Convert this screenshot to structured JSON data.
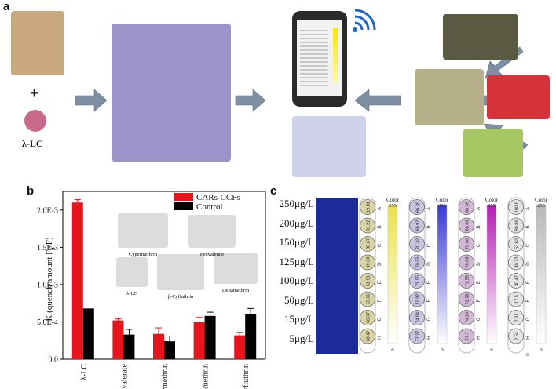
{
  "panels": {
    "a": "a",
    "b": "b",
    "c": "c"
  },
  "panel_a": {
    "plus": "+",
    "lc_label": "λ-LC"
  },
  "panel_b": {
    "ylabel_main": "K (quench amount F",
    "ylabel_sub": "0",
    "ylabel_end": "/F)",
    "legend_colors": {
      "CARs-CCFs": "#e8141c",
      "Control": "#000000"
    },
    "structure_labels": [
      "Cypermethrin",
      "Fenvalerate",
      "λ-LC",
      "β-Cyfluthrin",
      "Deltamethrin"
    ],
    "chart_data": {
      "type": "bar",
      "categories": [
        "λ-LC",
        "Fenvalerate",
        "Cypermethrin",
        "Deltamethrin",
        "β-Cyfluthrin"
      ],
      "series": [
        {
          "name": "CARs-CCFs",
          "values": [
            0.0021,
            0.00052,
            0.00034,
            0.0005,
            0.00032
          ],
          "errors": [
            4e-05,
            2e-05,
            8e-05,
            6e-05,
            4e-05
          ]
        },
        {
          "name": "Control",
          "values": [
            0.00068,
            0.00033,
            0.00024,
            0.00058,
            0.00061
          ],
          "errors": [
            0.0,
            7e-05,
            7e-05,
            5e-05,
            7e-05
          ]
        }
      ],
      "yticks": [
        "0.0",
        "5.0E-4",
        "1.0E-3",
        "1.5E-3",
        "2.0E-3"
      ],
      "ylim": [
        0,
        0.00225
      ],
      "legend_position": "top-right"
    }
  },
  "panel_c": {
    "concentrations": [
      "250μg/L",
      "200μg/L",
      "150μg/L",
      "125μg/L",
      "100μg/L",
      "50μg/L",
      "15μg/L",
      "5μg/L"
    ],
    "row_letters": [
      "A",
      "B",
      "C",
      "D",
      "E",
      "F",
      "G",
      "H"
    ],
    "color_label": "Color",
    "color_max": "255",
    "color_min": "0",
    "strips": [
      {
        "accent": "#e9e34a",
        "values": [
          "19.81",
          "31.22",
          "38.67",
          "49.30",
          "51.51",
          "55.66",
          "58.37",
          "60.47"
        ],
        "well_color": "#d9d4a3"
      },
      {
        "accent": "#3a3ad6",
        "values": [
          "66.39",
          "68.92",
          "70.32",
          "70.55",
          "71.55",
          "72.92",
          "74.94",
          "77.27"
        ],
        "well_color": "#c9c3e0"
      },
      {
        "accent": "#b21fb0",
        "values": [
          "68.39",
          "68.90",
          "70.80",
          "70.65",
          "71.55",
          "72.38",
          "74.30",
          "77.7"
        ],
        "well_color": "#d2b8d6"
      },
      {
        "accent": "#b8b8b8",
        "values": [
          "100.6",
          "90.86",
          "53.63",
          "40.73",
          "30.47",
          "17.5",
          "7.61",
          "2.54"
        ],
        "extra_bottom": "0",
        "well_color": "#e4e4e4"
      }
    ]
  }
}
